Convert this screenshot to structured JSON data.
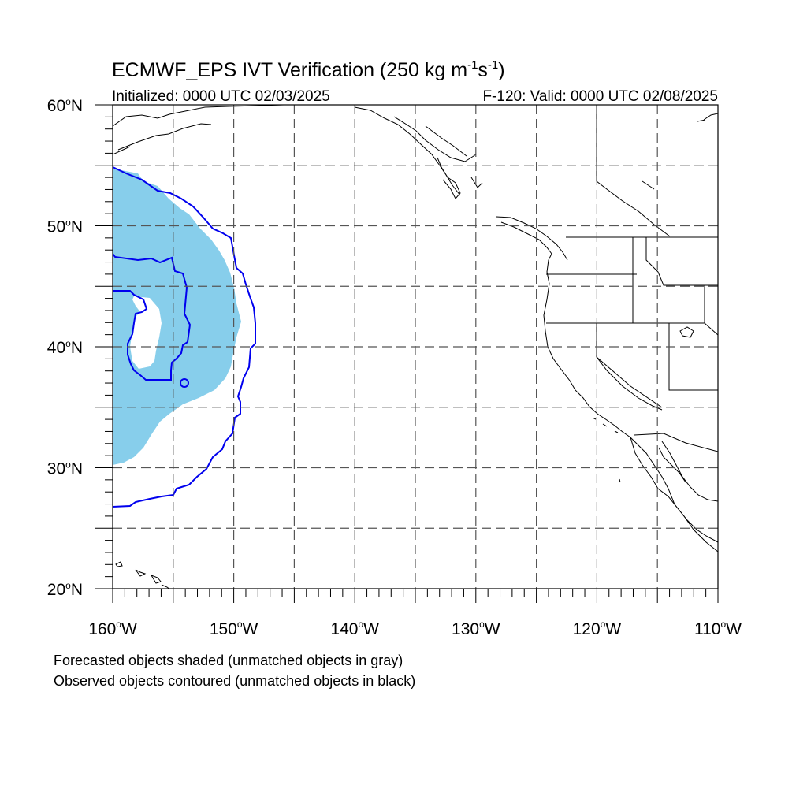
{
  "title": {
    "main": "ECMWF_EPS IVT Verification (250 kg m",
    "exp1": "-1",
    "mid": "s",
    "exp2": "-1",
    "end": ")"
  },
  "initialized": "Initialized: 0000 UTC 02/03/2025",
  "valid": "F-120: Valid: 0000 UTC 02/08/2025",
  "lat_labels": [
    {
      "value": 60,
      "text": "60",
      "hemi": "N"
    },
    {
      "value": 50,
      "text": "50",
      "hemi": "N"
    },
    {
      "value": 40,
      "text": "40",
      "hemi": "N"
    },
    {
      "value": 30,
      "text": "30",
      "hemi": "N"
    },
    {
      "value": 20,
      "text": "20",
      "hemi": "N"
    }
  ],
  "lon_labels": [
    {
      "value": -160,
      "text": "160",
      "hemi": "W"
    },
    {
      "value": -150,
      "text": "150",
      "hemi": "W"
    },
    {
      "value": -140,
      "text": "140",
      "hemi": "W"
    },
    {
      "value": -130,
      "text": "130",
      "hemi": "W"
    },
    {
      "value": -120,
      "text": "120",
      "hemi": "W"
    },
    {
      "value": -110,
      "text": "110",
      "hemi": "W"
    }
  ],
  "extent": {
    "lon": [
      -160,
      -110
    ],
    "lat": [
      20,
      60
    ]
  },
  "footer": {
    "line1": "Forecasted objects shaded (unmatched objects in gray)",
    "line2": "Observed objects contoured (unmatched objects in black)"
  },
  "colors": {
    "forecast_fill": "#87ceeb",
    "observed_contour": "#0000ee",
    "coast": "#000000",
    "grid": "#555555"
  }
}
